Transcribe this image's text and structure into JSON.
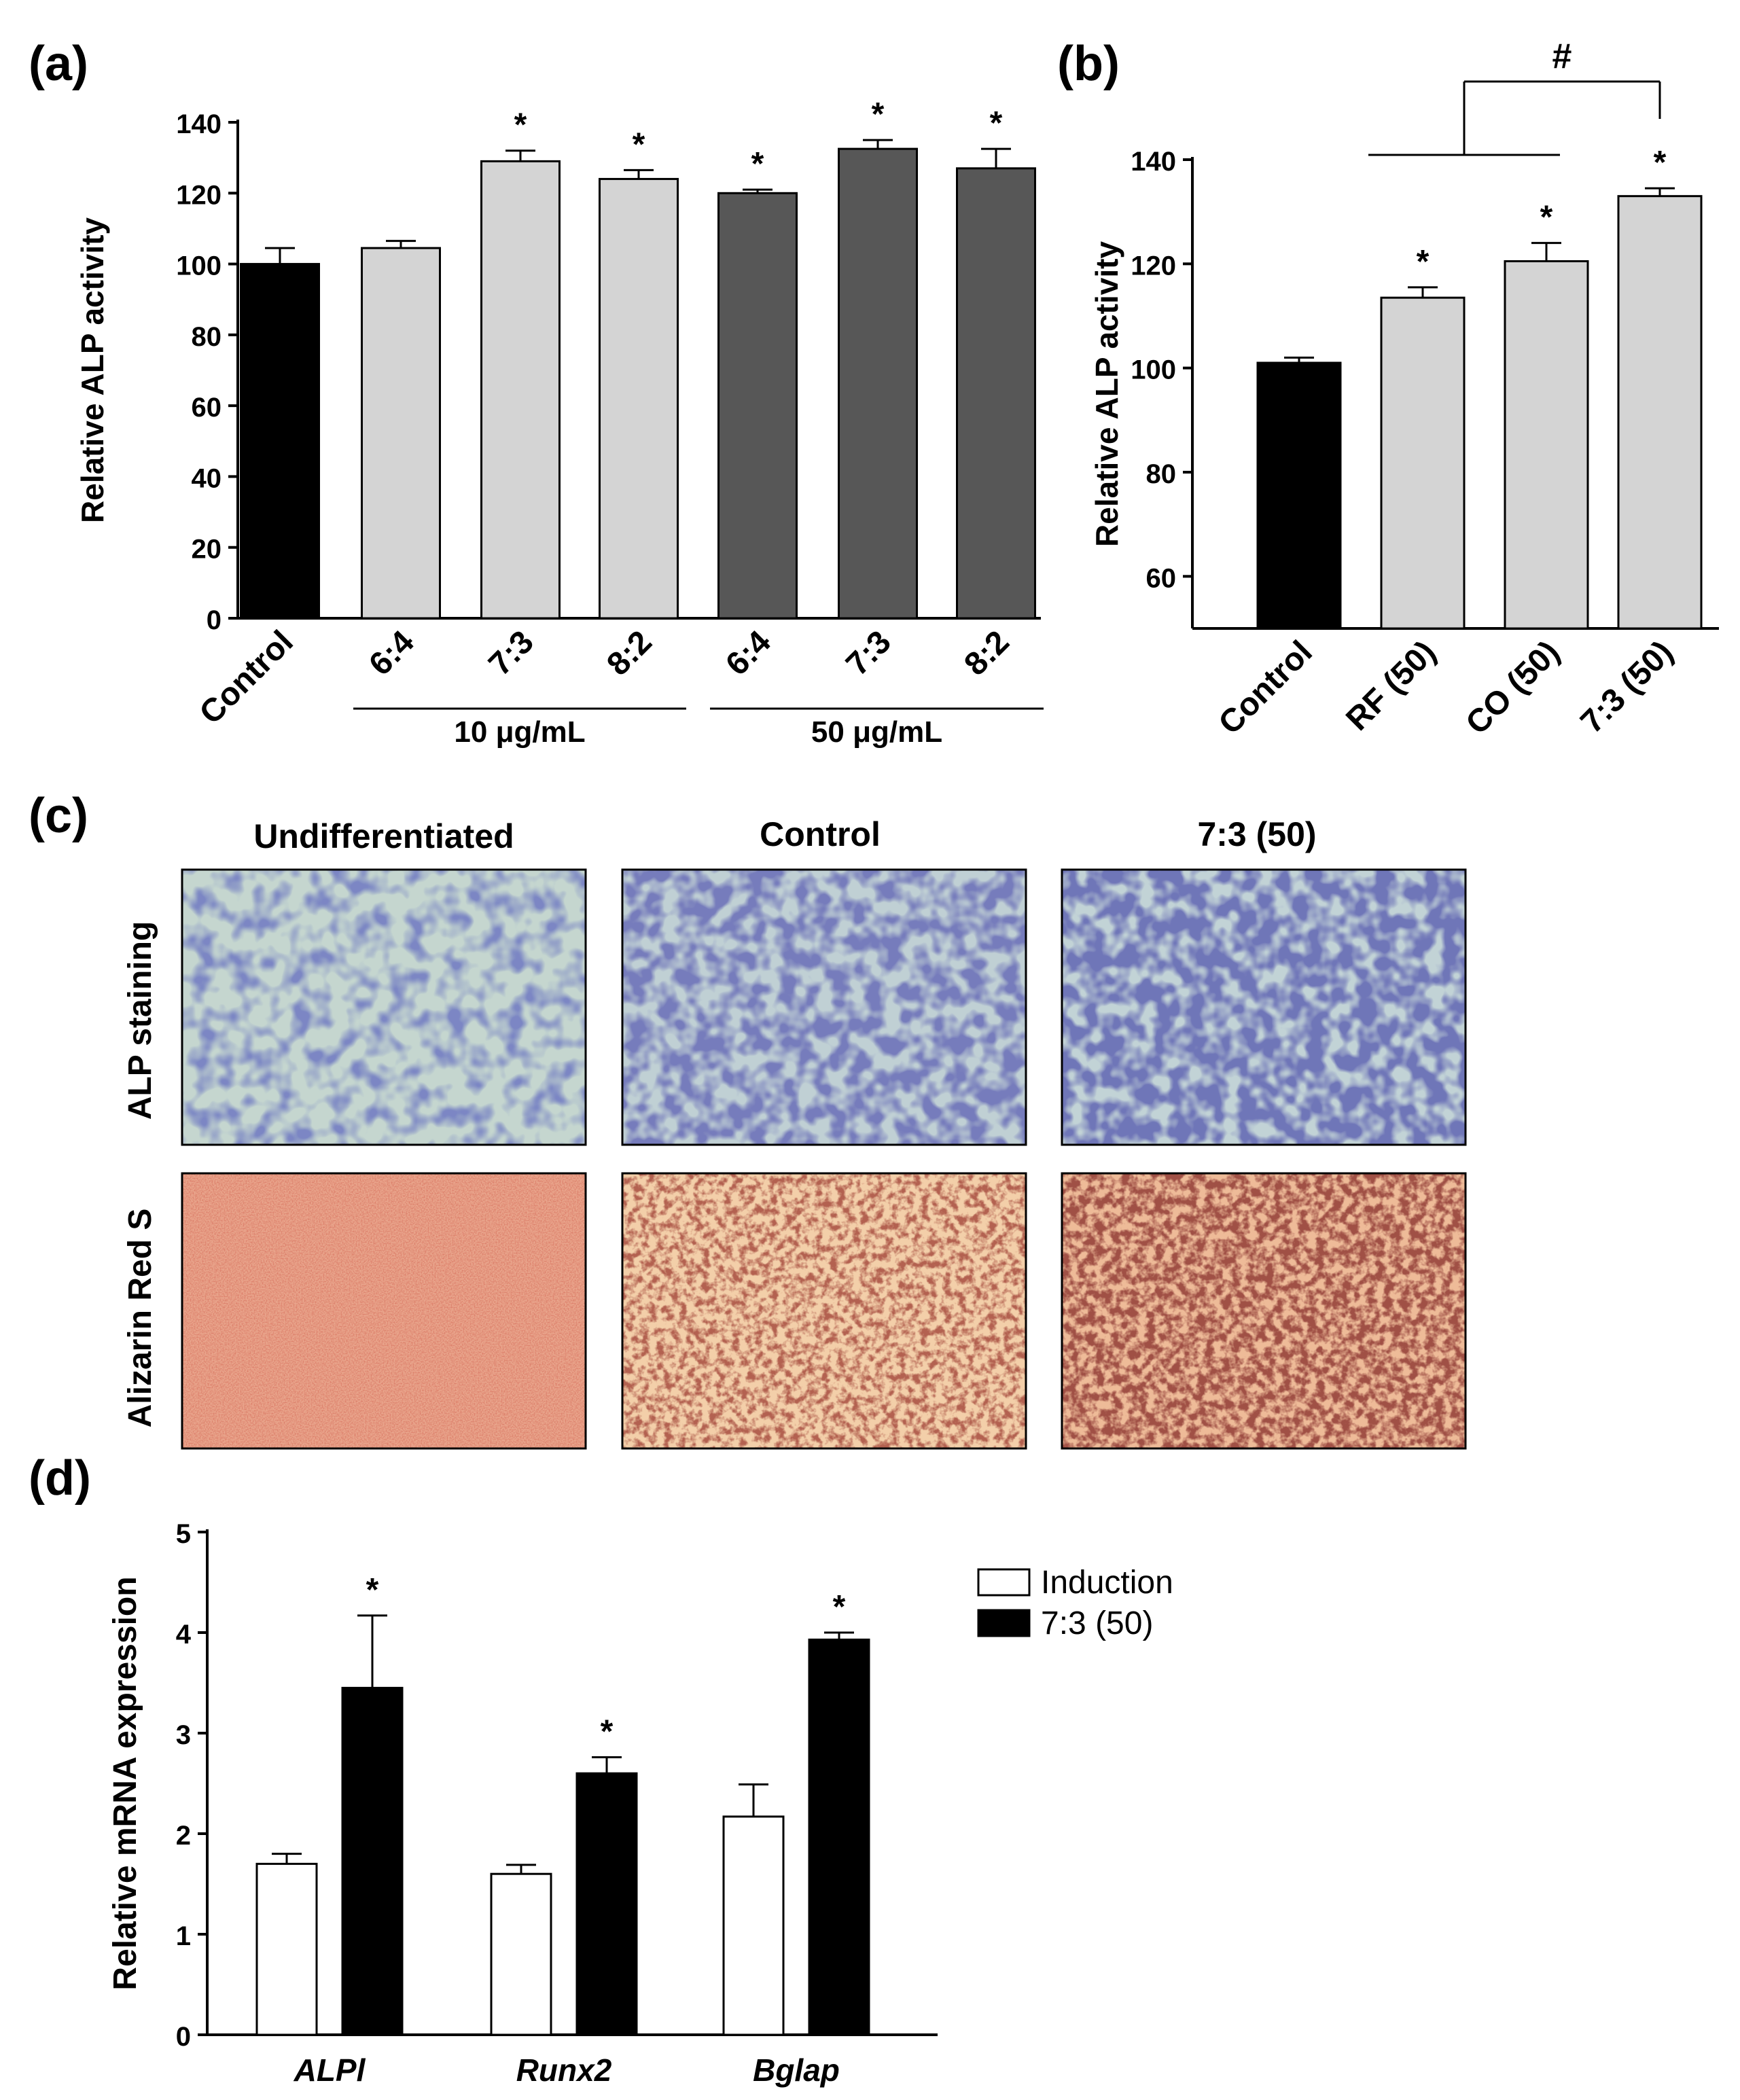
{
  "colors": {
    "black": "#000000",
    "light": "#d4d4d4",
    "dark": "#575757",
    "white": "#ffffff"
  },
  "chart_data": [
    {
      "panel": "(a)",
      "type": "bar",
      "title": "",
      "ylabel": "Relative ALP activity",
      "ylim": [
        0,
        140
      ],
      "yticks": [
        0,
        20,
        40,
        60,
        80,
        100,
        120,
        140
      ],
      "categories": [
        "Control",
        "6:4",
        "7:3",
        "8:2",
        "6:4",
        "7:3",
        "8:2"
      ],
      "values": [
        100,
        104.5,
        129,
        124,
        120,
        132.5,
        127
      ],
      "errors": [
        4.5,
        2,
        3,
        2.5,
        1,
        2.5,
        5.5
      ],
      "significance": [
        "",
        "",
        "*",
        "*",
        "*",
        "*",
        "*"
      ],
      "fills": [
        "black",
        "light",
        "light",
        "light",
        "dark",
        "dark",
        "dark"
      ],
      "groups": [
        {
          "label": "10 μg/mL",
          "members": [
            1,
            3
          ]
        },
        {
          "label": "50 μg/mL",
          "members": [
            4,
            6
          ]
        }
      ]
    },
    {
      "panel": "(b)",
      "type": "bar",
      "title": "",
      "ylabel": "Relative ALP activity",
      "ylim": [
        50,
        140
      ],
      "yticks": [
        60,
        80,
        100,
        120,
        140
      ],
      "categories": [
        "Control",
        "RF (50)",
        "CO (50)",
        "7:3 (50)"
      ],
      "values": [
        101,
        113.5,
        120.5,
        133
      ],
      "errors": [
        1,
        2,
        3.5,
        1.5
      ],
      "significance": [
        "",
        "*",
        "*",
        "*"
      ],
      "fills": [
        "black",
        "light",
        "light",
        "light"
      ],
      "bracket": {
        "label": "#",
        "from": [
          1,
          2
        ],
        "to": 3
      }
    },
    {
      "panel": "(d)",
      "type": "bar",
      "title": "",
      "ylabel": "Relative mRNA expression",
      "ylim": [
        0,
        5
      ],
      "yticks": [
        0,
        1,
        2,
        3,
        4,
        5
      ],
      "categories": [
        "ALPl",
        "Runx2",
        "Bglap"
      ],
      "series": [
        {
          "name": "Induction",
          "values": [
            1.7,
            1.6,
            2.17
          ],
          "errors": [
            0.1,
            0.09,
            0.32
          ],
          "significance": [
            "",
            "",
            ""
          ]
        },
        {
          "name": "7:3 (50)",
          "values": [
            3.45,
            2.6,
            3.93
          ],
          "errors": [
            0.72,
            0.16,
            0.07
          ],
          "significance": [
            "*",
            "*",
            "*"
          ]
        }
      ],
      "legend_position": "top-right"
    }
  ],
  "panels": {
    "a": {
      "label": "(a)"
    },
    "b": {
      "label": "(b)"
    },
    "c": {
      "label": "(c)",
      "columns": [
        "Undifferentiated",
        "Control",
        "7:3 (50)"
      ],
      "rows": [
        "ALP staining",
        "Alizarin Red S"
      ]
    },
    "d": {
      "label": "(d)"
    }
  }
}
